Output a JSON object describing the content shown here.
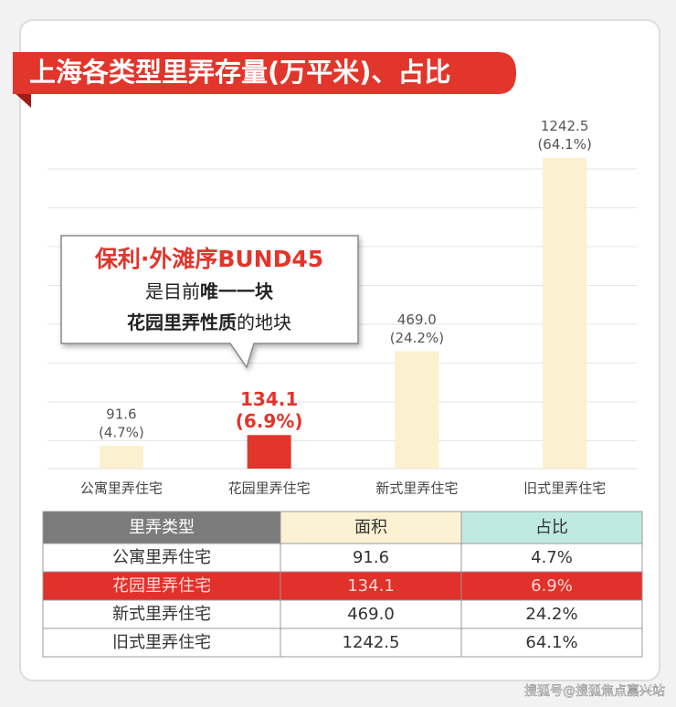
{
  "chart_data": {
    "type": "bar",
    "title": "上海各类型里弄存量(万平米)、占比",
    "categories": [
      "公寓里弄住宅",
      "花园里弄住宅",
      "新式里弄住宅",
      "旧式里弄住宅"
    ],
    "values": [
      91.6,
      134.1,
      469.0,
      1242.5
    ],
    "value_labels": [
      "91.6",
      "134.1",
      "469.0",
      "1242.5"
    ],
    "share_labels": [
      "(4.7%)",
      "(6.9%)",
      "(24.2%)",
      "(64.1%)"
    ],
    "colors": [
      "#fbf0cf",
      "#e2352b",
      "#fbf0cf",
      "#fbf0cf"
    ],
    "label_colors": [
      "#555555",
      "#e2352b",
      "#555555",
      "#555555"
    ],
    "ylim": [
      0,
      1300
    ],
    "annotation": {
      "title": "保利·外滩序BUND45",
      "lines": [
        {
          "normal": "是目前",
          "bold": "唯一一块"
        },
        {
          "bold": "花园里弄性质",
          "normal": "的地块"
        }
      ]
    }
  },
  "table": {
    "header": [
      "里弄类型",
      "面积",
      "占比"
    ],
    "rows": [
      [
        "公寓里弄住宅",
        "91.6",
        "4.7%"
      ],
      [
        "花园里弄住宅",
        "134.1",
        "6.9%"
      ],
      [
        "新式里弄住宅",
        "469.0",
        "24.2%"
      ],
      [
        "旧式里弄住宅",
        "1242.5",
        "64.1%"
      ]
    ]
  },
  "watermark": "搜狐号@搜狐焦点嘉兴站"
}
